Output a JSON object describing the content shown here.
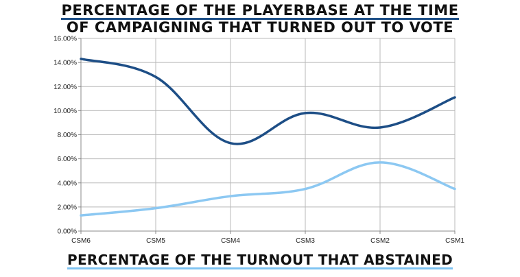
{
  "chart_data": {
    "type": "line",
    "title": "Percentage of the playerbase at the time of campaigning that turned out to vote",
    "title_lines": [
      "Percentage of the playerbase at the time",
      "of campaigning that turned out to vote"
    ],
    "bottom_title": "Percentage of the turnout that abstained",
    "categories": [
      "CSM6",
      "CSM5",
      "CSM4",
      "CSM3",
      "CSM2",
      "CSM1"
    ],
    "y_ticks": [
      "0.00%",
      "2.00%",
      "4.00%",
      "6.00%",
      "8.00%",
      "10.00%",
      "12.00%",
      "14.00%",
      "16.00%"
    ],
    "ylim": [
      0,
      16
    ],
    "grid": true,
    "series": [
      {
        "color": "#1d4e86",
        "values": [
          14.3,
          12.8,
          7.3,
          9.8,
          8.6,
          11.1
        ]
      },
      {
        "color": "#8cc8f2",
        "values": [
          1.3,
          1.9,
          2.9,
          3.5,
          5.7,
          3.5
        ]
      }
    ]
  }
}
